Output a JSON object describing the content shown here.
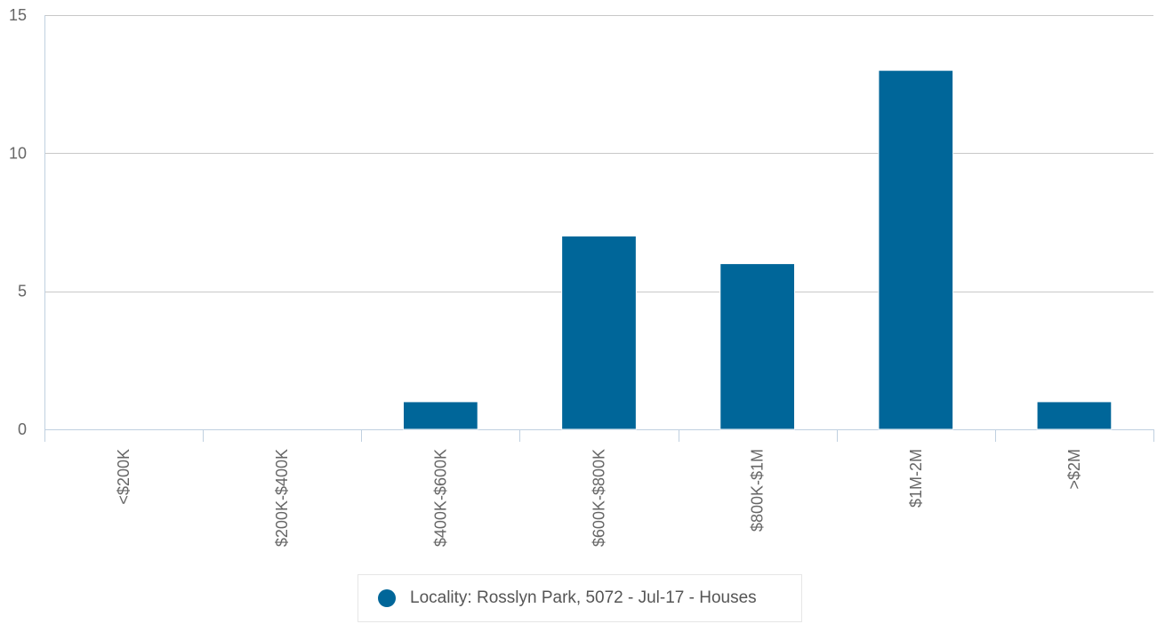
{
  "chart_data": {
    "type": "bar",
    "categories": [
      "<$200K",
      "$200K-$400K",
      "$400K-$600K",
      "$600K-$800K",
      "$800K-$1M",
      "$1M-2M",
      ">$2M"
    ],
    "series": [
      {
        "name": "Locality: Rosslyn Park, 5072 - Jul-17 - Houses",
        "values": [
          0,
          0,
          1,
          7,
          6,
          13,
          1
        ],
        "color": "#006699"
      }
    ],
    "ylim": [
      0,
      15
    ],
    "yticks": [
      0,
      5,
      10,
      15
    ],
    "grid": true,
    "legend_position": "bottom-center",
    "title": "",
    "xlabel": "",
    "ylabel": ""
  },
  "colors": {
    "bar": "#006699",
    "grid": "#c8c8c8",
    "axis": "#c0d0e0",
    "text": "#666666"
  }
}
